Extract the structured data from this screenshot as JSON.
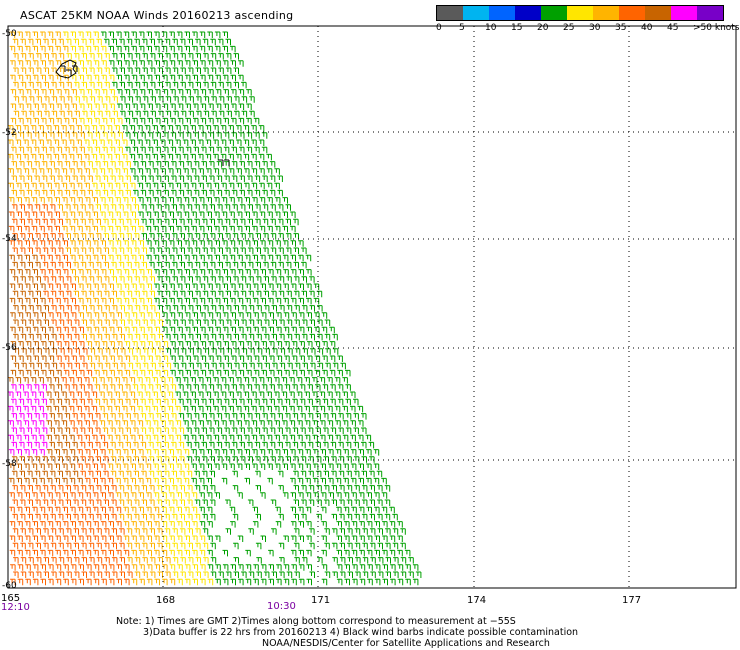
{
  "title": "ASCAT 25KM NOAA Winds 20160213 ascending",
  "legend": {
    "bins": [
      {
        "label": "0",
        "color": "#5a5a5a"
      },
      {
        "label": "5",
        "color": "#00b4f0"
      },
      {
        "label": "10",
        "color": "#0064ff"
      },
      {
        "label": "15",
        "color": "#0000c8"
      },
      {
        "label": "20",
        "color": "#00a000"
      },
      {
        "label": "25",
        "color": "#ffe600"
      },
      {
        "label": "30",
        "color": "#ffb400"
      },
      {
        "label": "35",
        "color": "#ff6400"
      },
      {
        "label": "40",
        "color": "#c86400"
      },
      {
        "label": "45",
        "color": "#ff00ff"
      },
      {
        "label": ">50 knots",
        "color": "#7800c8"
      }
    ]
  },
  "map": {
    "lat_labels": [
      "-50",
      "-52",
      "-54",
      "-56",
      "-58",
      "-60"
    ],
    "lon_labels": [
      "165",
      "168",
      "171",
      "174",
      "177"
    ],
    "time_labels": [
      "12:10",
      "10:30"
    ],
    "time_color": "#7a00a0",
    "grid": "dotted",
    "colors": {
      "green": "#00a000",
      "yellow": "#ffe600",
      "gold": "#ffb400",
      "orange": "#ff6400",
      "brown": "#c86400",
      "magenta": "#ff00ff",
      "black": "#000000"
    }
  },
  "notes": {
    "line1": "Note: 1) Times are GMT 2)Times along bottom correspond to measurement at −55S",
    "line2": "3)Data buffer is 22 hrs from 20160213 4) Black wind barbs indicate possible contamination",
    "line3": "NOAA/NESDIS/Center for Satellite Applications and Research"
  }
}
